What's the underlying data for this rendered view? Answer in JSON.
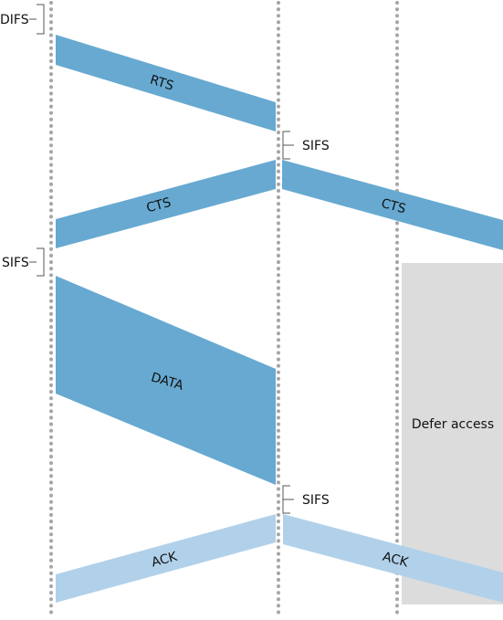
{
  "colors": {
    "frame_dark": "#67a9d1",
    "frame_light": "#b1d1ea",
    "defer_region": "#dcdcdc",
    "timeline_dots": "#a6a6a6"
  },
  "timelines": [
    "source",
    "destination",
    "other_station"
  ],
  "intervals": {
    "difs": "DIFS",
    "sifs_1": "SIFS",
    "sifs_2": "SIFS",
    "sifs_3": "SIFS"
  },
  "frames": {
    "rts": "RTS",
    "cts_to_source": "CTS",
    "cts_to_other": "CTS",
    "data": "DATA",
    "ack_to_source": "ACK",
    "ack_to_other": "ACK"
  },
  "defer_label": "Defer access"
}
